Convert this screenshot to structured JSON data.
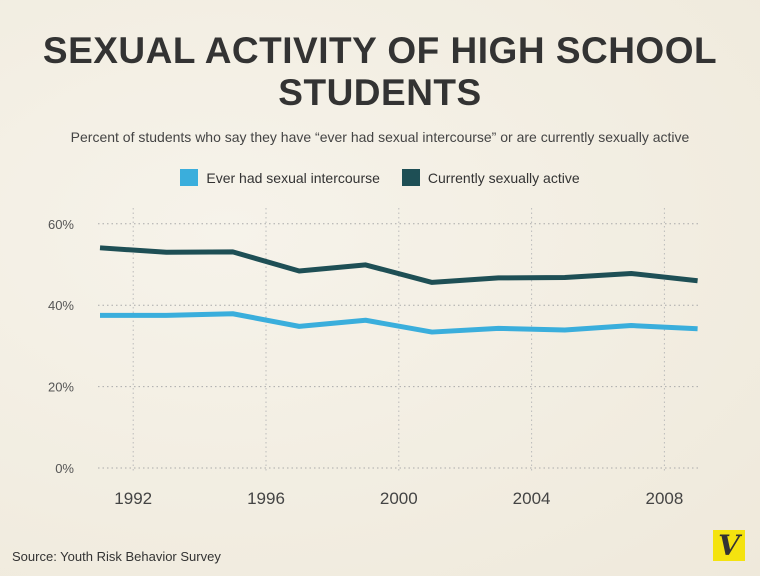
{
  "chart_data": {
    "type": "line",
    "title": "SEXUAL ACTIVITY OF HIGH SCHOOL STUDENTS",
    "subtitle": "Percent of students who say they have “ever had sexual intercourse” or are currently sexually active",
    "x": [
      1991,
      1993,
      1995,
      1997,
      1999,
      2001,
      2003,
      2005,
      2007,
      2009
    ],
    "series": [
      {
        "name": "Ever had sexual intercourse",
        "color": "#3aaedc",
        "values": [
          37.5,
          37.5,
          37.9,
          34.8,
          36.3,
          33.4,
          34.3,
          33.9,
          35.0,
          34.2
        ]
      },
      {
        "name": "Currently sexually active",
        "color": "#1e4f55",
        "values": [
          54.1,
          53.0,
          53.1,
          48.4,
          49.9,
          45.6,
          46.7,
          46.8,
          47.8,
          46.0
        ]
      }
    ],
    "xticks": [
      "1992",
      "1996",
      "2000",
      "2004",
      "2008"
    ],
    "xtick_values": [
      1992,
      1996,
      2000,
      2004,
      2008
    ],
    "yticks": [
      "0%",
      "20%",
      "40%",
      "60%"
    ],
    "ytick_values": [
      0,
      20,
      40,
      60
    ],
    "ylim": [
      0,
      60
    ],
    "xlim": [
      1991,
      2009
    ],
    "grid": true,
    "legend": "top-center"
  },
  "source": "Source: Youth Risk Behavior Survey",
  "logo": "V"
}
